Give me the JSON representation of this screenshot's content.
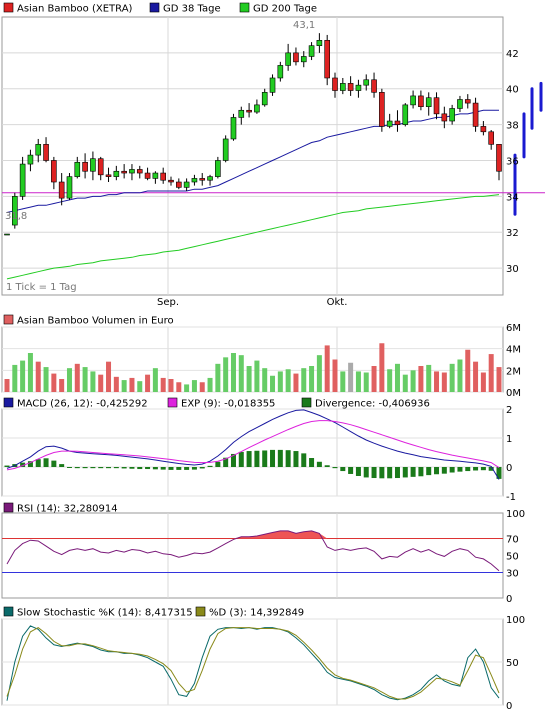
{
  "legends": {
    "price": [
      {
        "label": "Asian Bamboo (XETRA)",
        "color": "#dd2222"
      },
      {
        "label": "GD 38 Tage",
        "color": "#1a1aa0"
      },
      {
        "label": "GD 200 Tage",
        "color": "#22cc22"
      }
    ],
    "volume": [
      {
        "label": "Asian Bamboo Volumen in Euro",
        "color": "#e06060"
      }
    ],
    "macd": [
      {
        "label": "MACD (26, 12): -0,425292",
        "color": "#1a1aa0"
      },
      {
        "label": "EXP (9): -0,018355",
        "color": "#dd22dd"
      },
      {
        "label": "Divergence: -0,406936",
        "color": "#1a7a1a"
      }
    ],
    "rsi": [
      {
        "label": "RSI (14): 32,280914",
        "color": "#7a1a7a"
      }
    ],
    "stoch": [
      {
        "label": "Slow Stochastic %K (14): 8,417315",
        "color": "#0a6a6a"
      },
      {
        "label": "%D (3): 14,392849",
        "color": "#8a8a1a"
      }
    ]
  },
  "annotations": {
    "high": "43,1",
    "low": "31,8",
    "tick_note": "1 Tick = 1 Tag"
  },
  "x_labels": [
    "Sep.",
    "Okt."
  ],
  "y_ticks": {
    "price": [
      "42",
      "40",
      "38",
      "36",
      "34",
      "32",
      "30"
    ],
    "volume": [
      "6M",
      "4M",
      "2M",
      "0M"
    ],
    "macd": [
      "2",
      "1",
      "0",
      "-1"
    ],
    "rsi": [
      "100",
      "70",
      "50",
      "30",
      "0"
    ],
    "stoch": [
      "100",
      "50",
      "0"
    ]
  },
  "chart_data": [
    {
      "type": "candlestick",
      "title": "Asian Bamboo (XETRA)",
      "ylim": [
        28.5,
        44
      ],
      "reference_line": 34.2,
      "candles": [
        [
          31.9,
          31.9,
          31.9,
          31.9
        ],
        [
          32.4,
          34.2,
          32.2,
          34.0
        ],
        [
          34.0,
          36.2,
          33.8,
          35.8
        ],
        [
          35.8,
          36.6,
          35.4,
          36.3
        ],
        [
          36.3,
          37.2,
          35.9,
          36.9
        ],
        [
          36.9,
          37.3,
          35.9,
          36.0
        ],
        [
          36.0,
          36.2,
          34.4,
          34.8
        ],
        [
          34.8,
          35.3,
          33.5,
          33.9
        ],
        [
          33.9,
          35.3,
          33.8,
          35.1
        ],
        [
          35.1,
          36.2,
          35.0,
          35.9
        ],
        [
          35.9,
          36.4,
          35.0,
          35.4
        ],
        [
          35.4,
          36.5,
          34.9,
          36.1
        ],
        [
          36.1,
          36.2,
          34.9,
          35.2
        ],
        [
          35.2,
          35.6,
          34.8,
          35.1
        ],
        [
          35.1,
          35.7,
          34.9,
          35.4
        ],
        [
          35.4,
          35.8,
          35.0,
          35.3
        ],
        [
          35.3,
          35.8,
          34.9,
          35.5
        ],
        [
          35.5,
          35.7,
          35.0,
          35.3
        ],
        [
          35.3,
          35.6,
          34.9,
          35.0
        ],
        [
          35.0,
          35.4,
          34.7,
          35.3
        ],
        [
          35.3,
          35.6,
          34.7,
          34.9
        ],
        [
          34.9,
          35.1,
          34.6,
          34.8
        ],
        [
          34.8,
          35.0,
          34.4,
          34.5
        ],
        [
          34.5,
          35.0,
          34.3,
          34.8
        ],
        [
          34.8,
          35.2,
          34.6,
          35.0
        ],
        [
          35.0,
          35.3,
          34.6,
          34.9
        ],
        [
          34.9,
          35.2,
          34.6,
          35.1
        ],
        [
          35.1,
          36.2,
          35.0,
          36.0
        ],
        [
          36.0,
          37.4,
          35.9,
          37.2
        ],
        [
          37.2,
          38.6,
          37.1,
          38.4
        ],
        [
          38.4,
          39.0,
          38.0,
          38.8
        ],
        [
          38.8,
          39.2,
          38.4,
          38.7
        ],
        [
          38.7,
          39.4,
          38.6,
          39.1
        ],
        [
          39.1,
          40.0,
          39.0,
          39.8
        ],
        [
          39.8,
          40.8,
          39.6,
          40.6
        ],
        [
          40.6,
          41.5,
          40.4,
          41.3
        ],
        [
          41.3,
          42.5,
          41.0,
          42.0
        ],
        [
          42.0,
          42.3,
          41.3,
          41.5
        ],
        [
          41.5,
          42.1,
          41.2,
          41.8
        ],
        [
          41.8,
          42.6,
          41.6,
          42.4
        ],
        [
          42.4,
          43.1,
          42.0,
          42.7
        ],
        [
          42.7,
          43.0,
          40.2,
          40.6
        ],
        [
          40.6,
          40.9,
          39.5,
          39.9
        ],
        [
          39.9,
          40.6,
          39.7,
          40.3
        ],
        [
          40.3,
          40.7,
          39.6,
          39.9
        ],
        [
          39.9,
          40.5,
          39.5,
          40.2
        ],
        [
          40.2,
          40.8,
          39.9,
          40.5
        ],
        [
          40.5,
          40.9,
          39.5,
          39.8
        ],
        [
          39.8,
          40.0,
          37.6,
          37.9
        ],
        [
          37.9,
          38.6,
          37.8,
          38.2
        ],
        [
          38.2,
          38.8,
          37.6,
          38.0
        ],
        [
          38.0,
          39.2,
          37.9,
          39.1
        ],
        [
          39.1,
          39.9,
          38.9,
          39.6
        ],
        [
          39.6,
          39.9,
          38.8,
          39.0
        ],
        [
          39.0,
          39.8,
          38.5,
          39.5
        ],
        [
          39.5,
          39.8,
          38.3,
          38.6
        ],
        [
          38.6,
          39.0,
          37.8,
          38.2
        ],
        [
          38.2,
          39.1,
          38.0,
          38.9
        ],
        [
          38.9,
          39.6,
          38.7,
          39.4
        ],
        [
          39.4,
          39.7,
          38.9,
          39.2
        ],
        [
          39.2,
          39.5,
          37.6,
          37.9
        ],
        [
          37.9,
          38.2,
          37.4,
          37.6
        ],
        [
          37.6,
          37.7,
          36.6,
          36.9
        ],
        [
          36.9,
          36.9,
          34.9,
          35.4
        ]
      ],
      "series": [
        {
          "name": "GD 38 Tage",
          "values": [
            33.1,
            33.2,
            33.3,
            33.4,
            33.5,
            33.5,
            33.6,
            33.7,
            33.8,
            33.9,
            33.9,
            34.0,
            34.0,
            34.1,
            34.1,
            34.2,
            34.2,
            34.2,
            34.3,
            34.3,
            34.3,
            34.3,
            34.3,
            34.3,
            34.4,
            34.4,
            34.5,
            34.6,
            34.8,
            35.0,
            35.2,
            35.4,
            35.6,
            35.8,
            36.0,
            36.2,
            36.4,
            36.6,
            36.8,
            37.0,
            37.1,
            37.3,
            37.4,
            37.5,
            37.6,
            37.7,
            37.8,
            37.9,
            37.9,
            38.0,
            38.0,
            38.1,
            38.2,
            38.2,
            38.3,
            38.4,
            38.4,
            38.5,
            38.6,
            38.6,
            38.7,
            38.8,
            38.8,
            38.8
          ]
        },
        {
          "name": "GD 200 Tage",
          "values": [
            29.4,
            29.5,
            29.6,
            29.7,
            29.8,
            29.9,
            30.0,
            30.05,
            30.1,
            30.2,
            30.25,
            30.3,
            30.4,
            30.45,
            30.5,
            30.55,
            30.6,
            30.7,
            30.75,
            30.8,
            30.9,
            30.95,
            31.0,
            31.1,
            31.2,
            31.3,
            31.4,
            31.5,
            31.6,
            31.7,
            31.8,
            31.9,
            32.0,
            32.1,
            32.2,
            32.3,
            32.4,
            32.5,
            32.6,
            32.7,
            32.8,
            32.9,
            33.0,
            33.1,
            33.15,
            33.2,
            33.3,
            33.35,
            33.4,
            33.45,
            33.5,
            33.55,
            33.6,
            33.65,
            33.7,
            33.75,
            33.8,
            33.85,
            33.9,
            33.95,
            34.0,
            34.0,
            34.05,
            34.1
          ]
        }
      ]
    },
    {
      "type": "bar",
      "title": "Asian Bamboo Volumen in Euro",
      "ylim": [
        0,
        6
      ],
      "values": [
        1.2,
        2.5,
        2.9,
        3.6,
        2.8,
        2.3,
        1.7,
        1.2,
        2.2,
        2.6,
        2.3,
        1.9,
        1.6,
        2.8,
        1.4,
        1.1,
        1.3,
        1.0,
        1.6,
        2.2,
        1.3,
        1.2,
        0.9,
        0.7,
        1.1,
        0.9,
        1.3,
        2.6,
        3.2,
        3.6,
        3.4,
        2.4,
        2.9,
        2.2,
        1.5,
        1.9,
        2.1,
        1.7,
        2.2,
        2.4,
        3.4,
        4.3,
        3.0,
        1.9,
        2.7,
        1.9,
        1.8,
        2.4,
        4.5,
        2.1,
        2.6,
        1.6,
        2.0,
        2.4,
        2.5,
        1.9,
        1.8,
        2.6,
        3.0,
        3.9,
        2.8,
        1.8,
        3.5,
        2.3
      ],
      "colors": [
        "r",
        "g",
        "g",
        "g",
        "r",
        "g",
        "r",
        "r",
        "g",
        "r",
        "g",
        "g",
        "r",
        "r",
        "r",
        "g",
        "r",
        "g",
        "r",
        "g",
        "r",
        "r",
        "r",
        "g",
        "g",
        "r",
        "g",
        "g",
        "g",
        "g",
        "g",
        "g",
        "g",
        "g",
        "g",
        "g",
        "g",
        "r",
        "g",
        "g",
        "g",
        "r",
        "r",
        "g",
        "x",
        "g",
        "g",
        "r",
        "r",
        "g",
        "g",
        "g",
        "g",
        "r",
        "g",
        "r",
        "r",
        "g",
        "g",
        "r",
        "r",
        "r",
        "r",
        "r"
      ]
    },
    {
      "type": "line",
      "title": "MACD",
      "ylim": [
        -1,
        2
      ],
      "series": [
        {
          "name": "MACD (26, 12)",
          "values": [
            -0.05,
            0.05,
            0.2,
            0.35,
            0.55,
            0.7,
            0.72,
            0.65,
            0.55,
            0.5,
            0.48,
            0.46,
            0.44,
            0.42,
            0.4,
            0.37,
            0.34,
            0.31,
            0.28,
            0.24,
            0.2,
            0.16,
            0.12,
            0.09,
            0.07,
            0.1,
            0.2,
            0.38,
            0.6,
            0.85,
            1.05,
            1.22,
            1.36,
            1.5,
            1.64,
            1.76,
            1.87,
            1.95,
            1.97,
            1.88,
            1.78,
            1.66,
            1.53,
            1.38,
            1.22,
            1.07,
            0.93,
            0.82,
            0.72,
            0.63,
            0.55,
            0.48,
            0.42,
            0.36,
            0.32,
            0.28,
            0.24,
            0.22,
            0.2,
            0.17,
            0.14,
            0.1,
            0.02,
            -0.43
          ]
        },
        {
          "name": "EXP (9)",
          "values": [
            -0.1,
            -0.05,
            0.05,
            0.15,
            0.28,
            0.4,
            0.5,
            0.55,
            0.55,
            0.54,
            0.52,
            0.5,
            0.48,
            0.46,
            0.44,
            0.42,
            0.4,
            0.38,
            0.35,
            0.32,
            0.29,
            0.26,
            0.22,
            0.19,
            0.16,
            0.15,
            0.16,
            0.2,
            0.28,
            0.4,
            0.53,
            0.67,
            0.8,
            0.93,
            1.05,
            1.17,
            1.29,
            1.4,
            1.5,
            1.57,
            1.6,
            1.6,
            1.57,
            1.52,
            1.46,
            1.38,
            1.29,
            1.2,
            1.11,
            1.02,
            0.93,
            0.84,
            0.76,
            0.68,
            0.6,
            0.53,
            0.47,
            0.41,
            0.36,
            0.31,
            0.26,
            0.21,
            0.15,
            -0.02
          ]
        },
        {
          "name": "Divergence",
          "values": [
            0.05,
            0.1,
            0.15,
            0.2,
            0.27,
            0.3,
            0.22,
            0.1,
            0.0,
            -0.04,
            -0.04,
            -0.04,
            -0.04,
            -0.04,
            -0.04,
            -0.05,
            -0.06,
            -0.07,
            -0.07,
            -0.08,
            -0.09,
            -0.1,
            -0.1,
            -0.1,
            -0.09,
            -0.05,
            0.04,
            0.18,
            0.32,
            0.45,
            0.52,
            0.55,
            0.56,
            0.57,
            0.59,
            0.59,
            0.58,
            0.55,
            0.47,
            0.31,
            0.18,
            0.06,
            -0.04,
            -0.14,
            -0.24,
            -0.31,
            -0.36,
            -0.38,
            -0.39,
            -0.39,
            -0.38,
            -0.36,
            -0.34,
            -0.32,
            -0.28,
            -0.25,
            -0.23,
            -0.19,
            -0.16,
            -0.14,
            -0.12,
            -0.11,
            -0.13,
            -0.41
          ]
        }
      ]
    },
    {
      "type": "line",
      "title": "RSI (14)",
      "ylim": [
        0,
        100
      ],
      "reference_lines": [
        70,
        30
      ],
      "series": [
        {
          "name": "RSI (14)",
          "values": [
            40,
            56,
            64,
            68,
            67,
            61,
            55,
            51,
            56,
            58,
            56,
            58,
            54,
            53,
            56,
            54,
            57,
            56,
            53,
            55,
            52,
            51,
            48,
            50,
            53,
            52,
            54,
            59,
            64,
            69,
            72,
            72,
            73,
            75,
            77,
            79,
            79,
            76,
            78,
            79,
            76,
            60,
            56,
            58,
            56,
            58,
            59,
            55,
            46,
            49,
            48,
            54,
            58,
            54,
            57,
            52,
            49,
            55,
            58,
            56,
            48,
            46,
            40,
            32
          ]
        }
      ]
    },
    {
      "type": "line",
      "title": "Slow Stochastic",
      "ylim": [
        0,
        100
      ],
      "series": [
        {
          "name": "Slow Stochastic %K (14)",
          "values": [
            5,
            50,
            80,
            92,
            88,
            78,
            70,
            68,
            70,
            72,
            70,
            68,
            64,
            62,
            62,
            60,
            60,
            58,
            55,
            50,
            45,
            30,
            12,
            10,
            25,
            55,
            80,
            88,
            90,
            90,
            89,
            90,
            88,
            90,
            90,
            88,
            85,
            78,
            70,
            60,
            50,
            38,
            32,
            30,
            28,
            25,
            22,
            18,
            12,
            8,
            6,
            8,
            12,
            18,
            28,
            35,
            28,
            24,
            22,
            55,
            65,
            50,
            20,
            8
          ]
        },
        {
          "name": "%D (3)",
          "values": [
            10,
            35,
            65,
            85,
            90,
            83,
            74,
            69,
            69,
            71,
            71,
            69,
            66,
            63,
            62,
            61,
            60,
            59,
            57,
            53,
            48,
            40,
            25,
            15,
            18,
            40,
            65,
            83,
            89,
            90,
            90,
            90,
            89,
            89,
            89,
            88,
            86,
            81,
            73,
            64,
            54,
            43,
            35,
            31,
            29,
            26,
            23,
            20,
            15,
            10,
            7,
            7,
            10,
            15,
            23,
            31,
            30,
            27,
            23,
            40,
            58,
            55,
            35,
            14
          ]
        }
      ]
    }
  ]
}
